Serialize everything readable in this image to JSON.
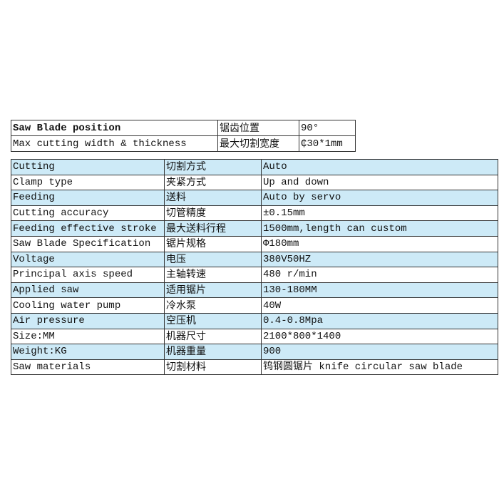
{
  "summary": {
    "rows": [
      {
        "en": "Saw Blade position",
        "cn": "锯齿位置",
        "value": "90°"
      },
      {
        "en": "Max cutting width & thickness",
        "cn": "最大切割宽度",
        "value": "₵30*1mm"
      }
    ]
  },
  "specs": {
    "row_highlight_color": "#cdeaf7",
    "rows": [
      {
        "en": "Cutting",
        "cn": "切割方式",
        "value": "Auto"
      },
      {
        "en": "Clamp type",
        "cn": "夹紧方式",
        "value": "Up and down"
      },
      {
        "en": "Feeding",
        "cn": "送料",
        "value": "Auto by servo"
      },
      {
        "en": "Cutting accuracy",
        "cn": "切管精度",
        "value": "±0.15mm"
      },
      {
        "en": "Feeding effective stroke",
        "cn": "最大送料行程",
        "value": "1500mm,length can custom"
      },
      {
        "en": "Saw Blade Specification",
        "cn": "锯片规格",
        "value": "Φ180mm"
      },
      {
        "en": "Voltage",
        "cn": "电压",
        "value": "380V50HZ"
      },
      {
        "en": "Principal axis speed",
        "cn": "主轴转速",
        "value": "480 r/min"
      },
      {
        "en": "Applied saw",
        "cn": "适用锯片",
        "value": "130-180MM"
      },
      {
        "en": "Cooling water pump",
        "cn": "冷水泵",
        "value": "40W"
      },
      {
        "en": "Air pressure",
        "cn": "空压机",
        "value": "0.4-0.8Mpa"
      },
      {
        "en": "Size:MM",
        "cn": "机器尺寸",
        "value": "2100*800*1400"
      },
      {
        "en": "Weight:KG",
        "cn": "机器重量",
        "value": "900"
      },
      {
        "en": "Saw materials",
        "cn": "切割材料",
        "value": "钨钢圆锯片 knife circular saw blade"
      }
    ]
  }
}
